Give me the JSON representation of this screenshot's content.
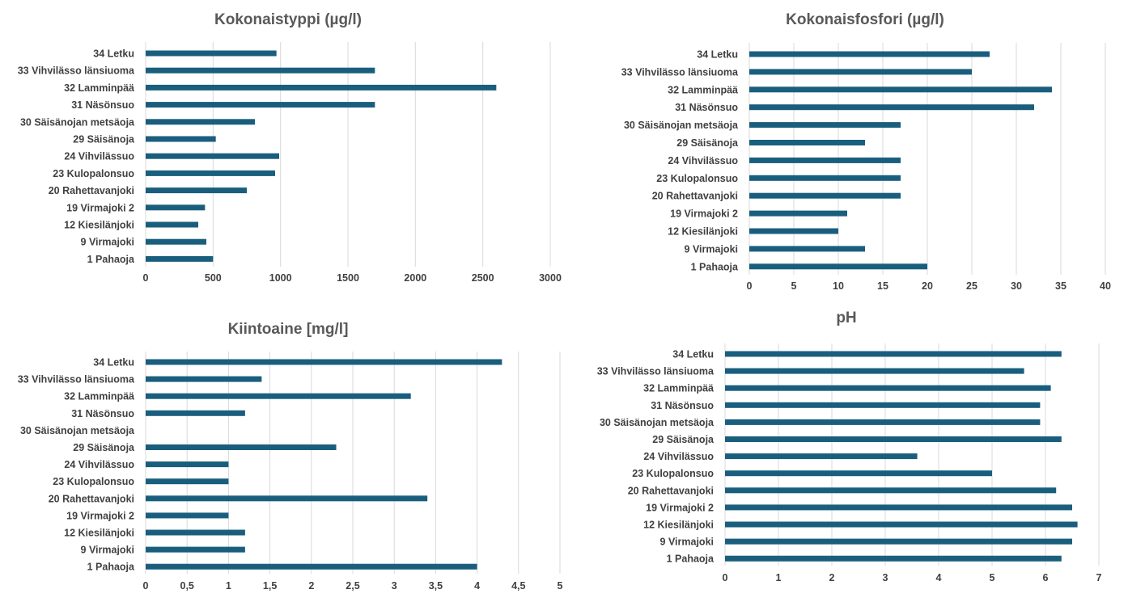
{
  "chart_data": [
    {
      "type": "bar",
      "orientation": "horizontal",
      "title": "Kokonaistyppi  (µg/l)",
      "categories": [
        "34 Letku",
        "33 Vihvilässo länsiuoma",
        "32 Lamminpää",
        "31 Näsönsuo",
        "30 Säisänojan metsäoja",
        "29 Säisänoja",
        "24 Vihvilässuo",
        "23 Kulopalonsuo",
        "20 Rahettavanjoki",
        "19 Virmajoki 2",
        "12 Kiesilänjoki",
        "9 Virmajoki",
        "1 Pahaoja"
      ],
      "values": [
        970,
        1700,
        2600,
        1700,
        810,
        520,
        990,
        960,
        750,
        440,
        390,
        450,
        500
      ],
      "xlim": [
        0,
        3000
      ],
      "ticks": [
        "0",
        "500",
        "1000",
        "1500",
        "2000",
        "2500",
        "3000"
      ],
      "grid": true,
      "color": "#1a5e7e"
    },
    {
      "type": "bar",
      "orientation": "horizontal",
      "title": "Kokonaisfosfori  (µg/l)",
      "categories": [
        "34 Letku",
        "33 Vihvilässo länsiuoma",
        "32 Lamminpää",
        "31 Näsönsuo",
        "30 Säisänojan metsäoja",
        "29 Säisänoja",
        "24 Vihvilässuo",
        "23 Kulopalonsuo",
        "20 Rahettavanjoki",
        "19 Virmajoki 2",
        "12 Kiesilänjoki",
        "9 Virmajoki",
        "1 Pahaoja"
      ],
      "values": [
        27,
        25,
        34,
        32,
        17,
        13,
        17,
        17,
        17,
        11,
        10,
        13,
        20
      ],
      "xlim": [
        0,
        40
      ],
      "ticks": [
        "0",
        "5",
        "10",
        "15",
        "20",
        "25",
        "30",
        "35",
        "40"
      ],
      "grid": true,
      "color": "#1a5e7e"
    },
    {
      "type": "bar",
      "orientation": "horizontal",
      "title": "Kiintoaine [mg/l]",
      "categories": [
        "34 Letku",
        "33 Vihvilässo länsiuoma",
        "32 Lamminpää",
        "31 Näsönsuo",
        "30 Säisänojan metsäoja",
        "29 Säisänoja",
        "24 Vihvilässuo",
        "23 Kulopalonsuo",
        "20 Rahettavanjoki",
        "19 Virmajoki 2",
        "12 Kiesilänjoki",
        "9 Virmajoki",
        "1 Pahaoja"
      ],
      "values": [
        4.3,
        1.4,
        3.2,
        1.2,
        null,
        2.3,
        1.0,
        1.0,
        3.4,
        1.0,
        1.2,
        1.2,
        4.0
      ],
      "xlim": [
        0,
        5
      ],
      "ticks": [
        "0",
        "0,5",
        "1",
        "1,5",
        "2",
        "2,5",
        "3",
        "3,5",
        "4",
        "4,5",
        "5"
      ],
      "grid": true,
      "color": "#1a5e7e"
    },
    {
      "type": "bar",
      "orientation": "horizontal",
      "title": "pH",
      "categories": [
        "34 Letku",
        "33 Vihvilässo länsiuoma",
        "32 Lamminpää",
        "31 Näsönsuo",
        "30 Säisänojan metsäoja",
        "29 Säisänoja",
        "24 Vihvilässuo",
        "23 Kulopalonsuo",
        "20 Rahettavanjoki",
        "19 Virmajoki 2",
        "12 Kiesilänjoki",
        "9 Virmajoki",
        "1 Pahaoja"
      ],
      "values": [
        6.3,
        5.6,
        6.1,
        5.9,
        5.9,
        6.3,
        3.6,
        5.0,
        6.2,
        6.5,
        6.6,
        6.5,
        6.3
      ],
      "xlim": [
        0,
        7
      ],
      "ticks": [
        "0",
        "1",
        "2",
        "3",
        "4",
        "5",
        "6",
        "7"
      ],
      "grid": true,
      "color": "#1a5e7e"
    }
  ]
}
